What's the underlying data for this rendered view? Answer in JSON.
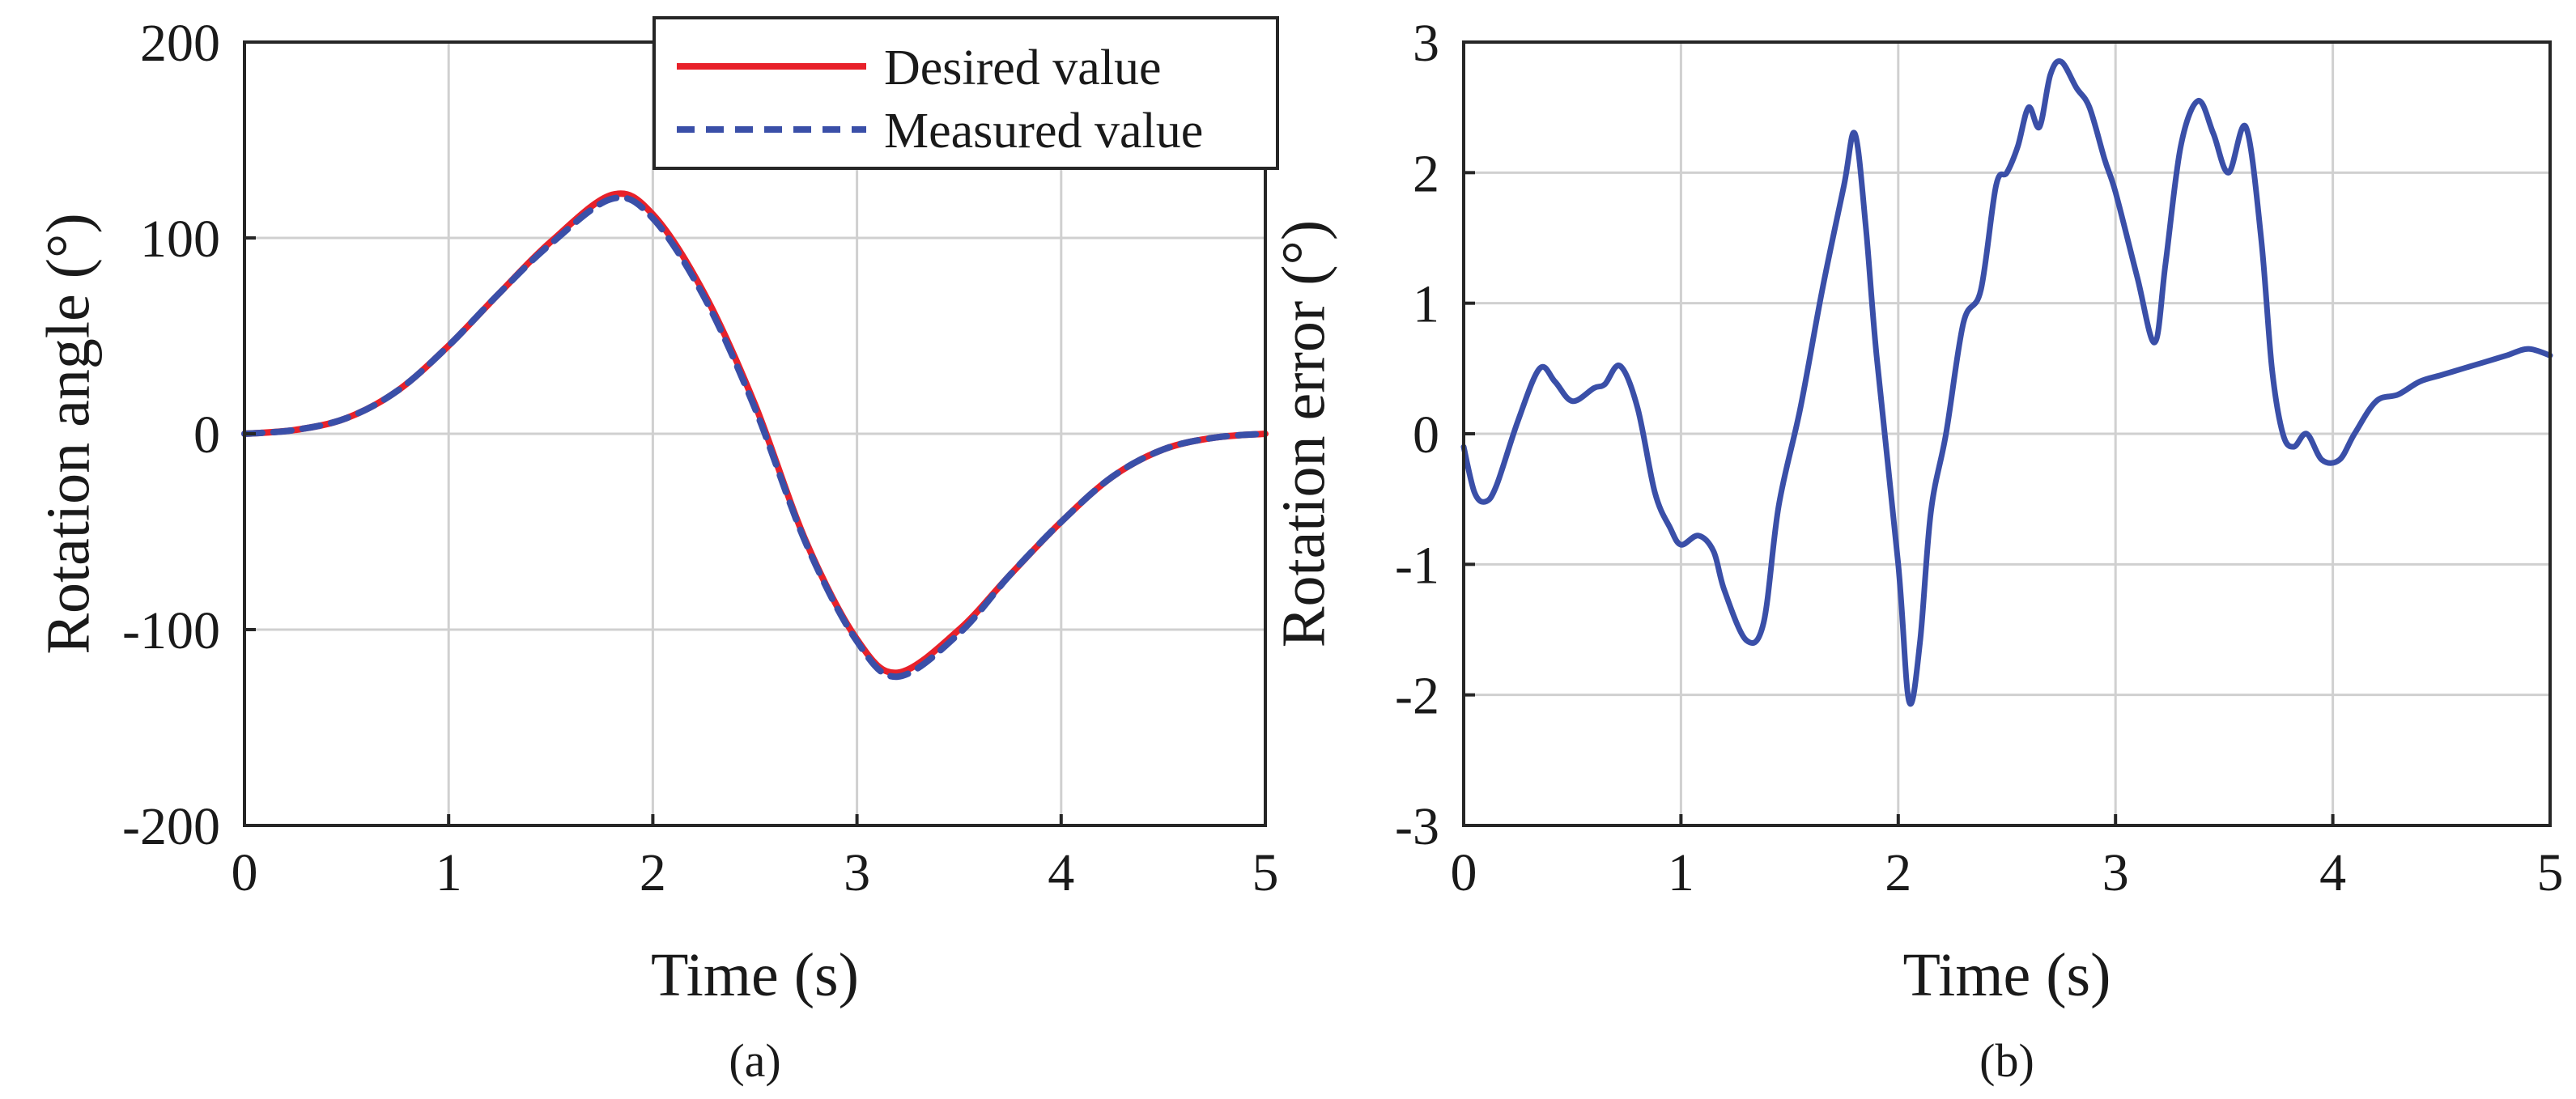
{
  "chart_data": [
    {
      "type": "line",
      "caption": "(a)",
      "xlabel": "Time (s)",
      "ylabel": "Rotation angle (°)",
      "xlim": [
        0,
        5
      ],
      "ylim": [
        -200,
        200
      ],
      "xticks": [
        0,
        1,
        2,
        3,
        4,
        5
      ],
      "yticks": [
        -200,
        -100,
        0,
        100,
        200
      ],
      "grid": true,
      "legend_position": "top-right",
      "series": [
        {
          "name": "Desired value",
          "color": "#e8212a",
          "style": "solid",
          "x": [
            0,
            0.25,
            0.5,
            0.75,
            1.0,
            1.25,
            1.5,
            1.8,
            2.0,
            2.25,
            2.5,
            2.75,
            3.0,
            3.2,
            3.5,
            3.75,
            4.0,
            4.25,
            4.5,
            4.75,
            5.0
          ],
          "y": [
            0,
            2,
            8,
            22,
            45,
            72,
            98,
            122,
            112,
            72,
            15,
            -55,
            -105,
            -122,
            -100,
            -72,
            -45,
            -22,
            -8,
            -2,
            0
          ]
        },
        {
          "name": "Measured value",
          "color": "#3a4fa8",
          "style": "dashed",
          "x": [
            0,
            0.25,
            0.5,
            0.75,
            1.0,
            1.25,
            1.5,
            1.8,
            2.0,
            2.25,
            2.5,
            2.75,
            3.0,
            3.2,
            3.5,
            3.75,
            4.0,
            4.25,
            4.5,
            4.75,
            5.0
          ],
          "y": [
            0,
            2,
            8,
            22,
            45,
            72,
            97,
            120,
            110,
            70,
            13,
            -56,
            -106,
            -124,
            -102,
            -72,
            -45,
            -22,
            -8,
            -2,
            0
          ]
        }
      ]
    },
    {
      "type": "line",
      "caption": "(b)",
      "xlabel": "Time (s)",
      "ylabel": "Rotation error (°)",
      "xlim": [
        0,
        5
      ],
      "ylim": [
        -3,
        3
      ],
      "xticks": [
        0,
        1,
        2,
        3,
        4,
        5
      ],
      "yticks": [
        -3,
        -2,
        -1,
        0,
        1,
        2,
        3
      ],
      "grid": true,
      "series": [
        {
          "color": "#3a4fa8",
          "style": "solid",
          "x": [
            0,
            0.05,
            0.1,
            0.15,
            0.25,
            0.35,
            0.42,
            0.5,
            0.6,
            0.65,
            0.72,
            0.8,
            0.88,
            0.95,
            1.0,
            1.08,
            1.15,
            1.2,
            1.3,
            1.38,
            1.45,
            1.55,
            1.65,
            1.75,
            1.8,
            1.85,
            1.9,
            2.0,
            2.05,
            2.1,
            2.15,
            2.22,
            2.3,
            2.38,
            2.45,
            2.5,
            2.55,
            2.6,
            2.65,
            2.7,
            2.75,
            2.82,
            2.88,
            2.95,
            3.0,
            3.1,
            3.18,
            3.23,
            3.3,
            3.38,
            3.45,
            3.52,
            3.6,
            3.67,
            3.72,
            3.77,
            3.82,
            3.88,
            3.95,
            4.03,
            4.1,
            4.2,
            4.3,
            4.4,
            4.5,
            4.6,
            4.7,
            4.8,
            4.9,
            5.0
          ],
          "y": [
            -0.1,
            -0.45,
            -0.52,
            -0.4,
            0.1,
            0.5,
            0.4,
            0.25,
            0.35,
            0.38,
            0.52,
            0.2,
            -0.45,
            -0.72,
            -0.85,
            -0.78,
            -0.9,
            -1.2,
            -1.58,
            -1.45,
            -0.55,
            0.2,
            1.1,
            1.9,
            2.3,
            1.6,
            0.6,
            -1.0,
            -2.05,
            -1.6,
            -0.6,
            0.0,
            0.85,
            1.1,
            1.9,
            2.0,
            2.2,
            2.5,
            2.35,
            2.75,
            2.85,
            2.65,
            2.5,
            2.1,
            1.85,
            1.2,
            0.7,
            1.3,
            2.2,
            2.55,
            2.3,
            2.0,
            2.35,
            1.5,
            0.5,
            0.0,
            -0.1,
            0.0,
            -0.2,
            -0.2,
            0.0,
            0.25,
            0.3,
            0.4,
            0.45,
            0.5,
            0.55,
            0.6,
            0.65,
            0.6
          ]
        }
      ]
    }
  ]
}
